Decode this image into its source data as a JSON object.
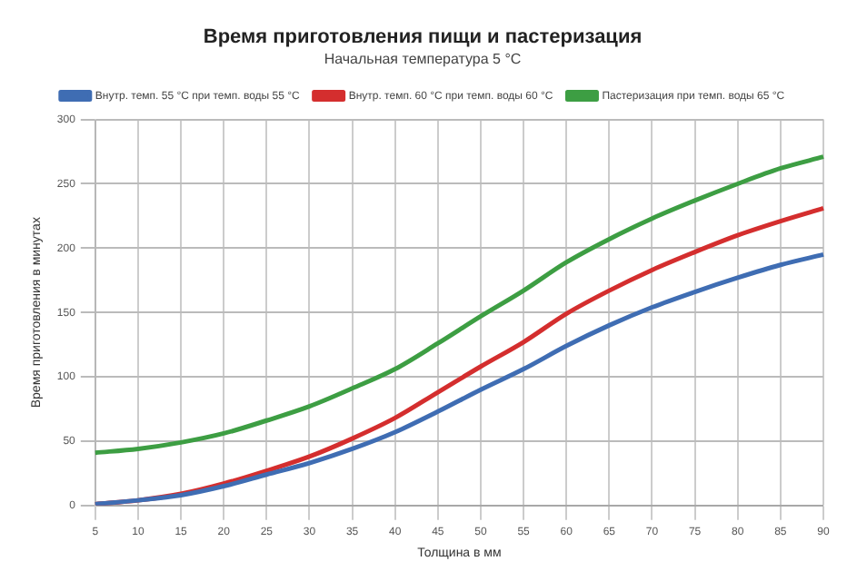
{
  "chart_data": {
    "type": "line",
    "title": "Время приготовления пищи и пастеризация",
    "subtitle": "Начальная температура 5 °C",
    "xlabel": "Толщина в мм",
    "ylabel": "Время приготовления в минутах",
    "categories": [
      "5",
      "10",
      "15",
      "20",
      "25",
      "30",
      "35",
      "40",
      "45",
      "50",
      "55",
      "60",
      "65",
      "70",
      "75",
      "80",
      "85",
      "90"
    ],
    "series": [
      {
        "name": "Внутр. темп. 55 °C при темп. воды 55 °C",
        "color": "#3f6db3",
        "values": [
          1,
          4,
          8,
          15,
          24,
          33,
          44,
          57,
          73,
          90,
          106,
          124,
          140,
          154,
          166,
          177,
          187,
          195
        ]
      },
      {
        "name": "Внутр. темп. 60 °C при темп. воды 60 °C",
        "color": "#d42e2e",
        "values": [
          1,
          4,
          9,
          17,
          27,
          38,
          52,
          68,
          88,
          108,
          127,
          149,
          167,
          183,
          197,
          210,
          221,
          231
        ]
      },
      {
        "name": "Пастеризация при темп. воды 65 °C",
        "color": "#3d9e43",
        "values": [
          41,
          44,
          49,
          56,
          66,
          77,
          91,
          106,
          126,
          147,
          167,
          189,
          207,
          223,
          237,
          250,
          262,
          271
        ]
      }
    ],
    "ylim": [
      0,
      300
    ],
    "yticks": [
      0,
      50,
      100,
      150,
      200,
      250,
      300
    ],
    "grid": true,
    "legend": "top",
    "marker": "none",
    "line_style": "solid"
  }
}
